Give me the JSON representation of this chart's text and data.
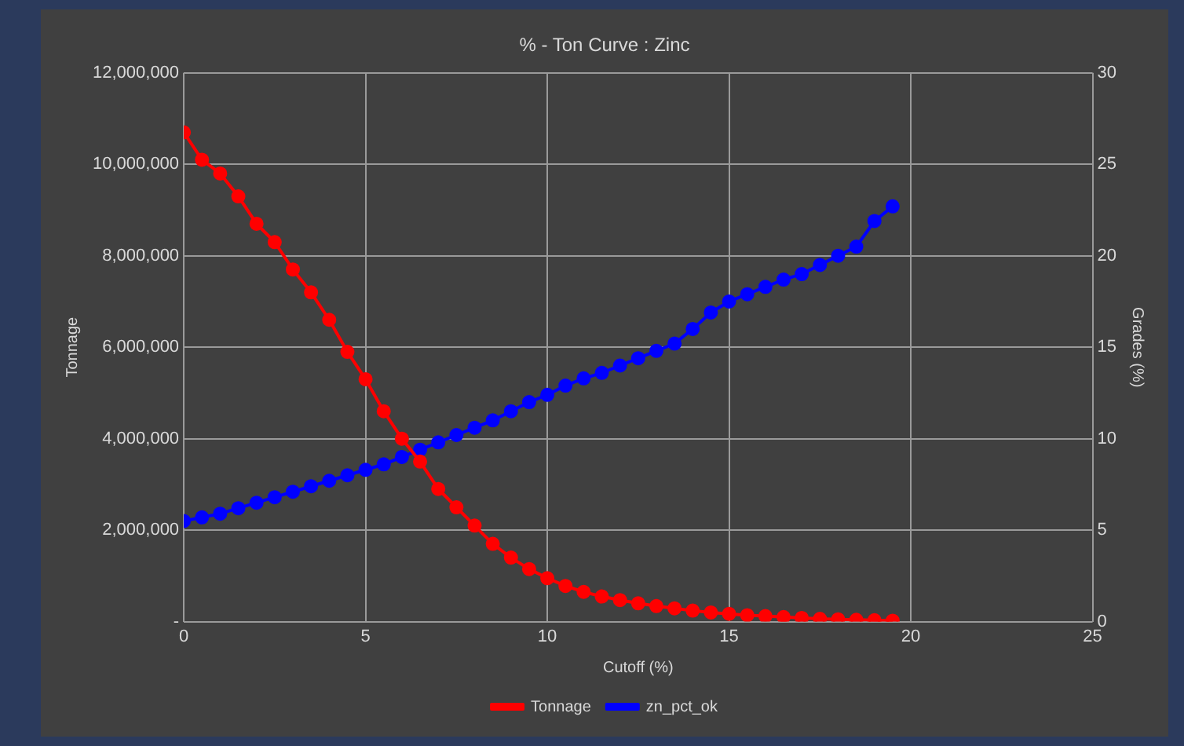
{
  "chart_data": {
    "type": "line",
    "title": "% - Ton Curve : Zinc",
    "xlabel": "Cutoff (%)",
    "ylabel": "Tonnage",
    "y2label": "Grades (%)",
    "x": [
      0,
      0.5,
      1,
      1.5,
      2,
      2.5,
      3,
      3.5,
      4,
      4.5,
      5,
      5.5,
      6,
      6.5,
      7,
      7.5,
      8,
      8.5,
      9,
      9.5,
      10,
      10.5,
      11,
      11.5,
      12,
      12.5,
      13,
      13.5,
      14,
      14.5,
      15,
      15.5,
      16,
      16.5,
      17,
      17.5,
      18,
      18.5,
      19,
      19.5
    ],
    "series": [
      {
        "name": "Tonnage",
        "color": "#ff0000",
        "values": [
          10700000,
          10100000,
          9800000,
          9300000,
          8700000,
          8300000,
          7700000,
          7200000,
          6600000,
          5900000,
          5300000,
          4600000,
          4000000,
          3500000,
          2900000,
          2500000,
          2100000,
          1700000,
          1400000,
          1150000,
          950000,
          780000,
          650000,
          550000,
          470000,
          400000,
          340000,
          290000,
          240000,
          200000,
          170000,
          140000,
          120000,
          100000,
          80000,
          60000,
          50000,
          40000,
          30000,
          20000
        ]
      },
      {
        "name": "zn_pct_ok",
        "color": "#0000ff",
        "axis": "y2",
        "values": [
          5.5,
          5.7,
          5.9,
          6.2,
          6.5,
          6.8,
          7.1,
          7.4,
          7.7,
          8.0,
          8.3,
          8.6,
          9.0,
          9.4,
          9.8,
          10.2,
          10.6,
          11.0,
          11.5,
          12.0,
          12.4,
          12.9,
          13.3,
          13.6,
          14.0,
          14.4,
          14.8,
          15.2,
          16.0,
          16.9,
          17.5,
          17.9,
          18.3,
          18.7,
          19.0,
          19.5,
          20.0,
          20.5,
          21.9,
          22.7
        ]
      }
    ],
    "xlim": [
      0,
      25
    ],
    "xticks": [
      0,
      5,
      10,
      15,
      20,
      25
    ],
    "ylim": [
      0,
      12000000
    ],
    "yticks": [
      {
        "value": 0,
        "label": "-"
      },
      {
        "value": 2000000,
        "label": "2,000,000"
      },
      {
        "value": 4000000,
        "label": "4,000,000"
      },
      {
        "value": 6000000,
        "label": "6,000,000"
      },
      {
        "value": 8000000,
        "label": "8,000,000"
      },
      {
        "value": 10000000,
        "label": "10,000,000"
      },
      {
        "value": 12000000,
        "label": "12,000,000"
      }
    ],
    "y2lim": [
      0,
      30
    ],
    "y2ticks": [
      0,
      5,
      10,
      15,
      20,
      25,
      30
    ],
    "grid": true,
    "legend": "bottom",
    "marker": "circle",
    "line_style": "solid"
  }
}
